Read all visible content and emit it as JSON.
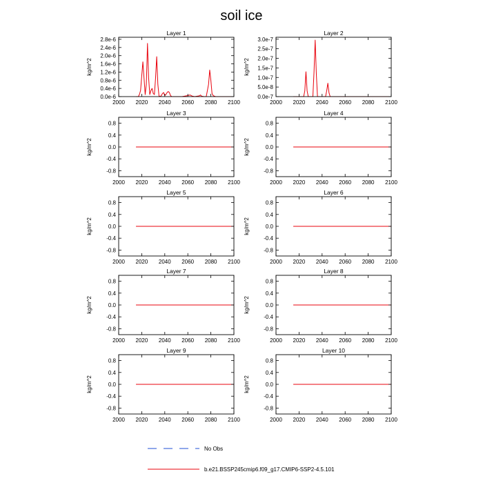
{
  "title": "soil ice",
  "colors": {
    "model": "#e8000b",
    "obs": "#1f4fd6",
    "axis": "#000000"
  },
  "chart_data": [
    {
      "type": "line",
      "panel": "Layer 1",
      "xlabel": "",
      "ylabel": "kg/m^2",
      "xlim": [
        2000,
        2100
      ],
      "ylim": [
        0,
        2.9e-06
      ],
      "xticks": [
        2000,
        2020,
        2040,
        2060,
        2080,
        2100
      ],
      "xtick_labels": [
        "2000",
        "2020",
        "2040",
        "2060",
        "2080",
        "2100"
      ],
      "yticks": [
        0,
        4e-07,
        8e-07,
        1.2e-06,
        1.6e-06,
        2e-06,
        2.4e-06,
        2.8e-06
      ],
      "ytick_labels": [
        "0.0e-6",
        "0.4e-6",
        "0.8e-6",
        "1.2e-6",
        "1.6e-6",
        "2.0e-6",
        "2.4e-6",
        "2.8e-6"
      ],
      "series": [
        {
          "name": "b.e21.BSSP245cmip6.f09_g17.CMIP6-SSP2-4.5.101",
          "x": [
            2015,
            2017,
            2018,
            2019,
            2020,
            2021,
            2022,
            2023,
            2024,
            2025,
            2026,
            2027,
            2028,
            2029,
            2030,
            2031,
            2032,
            2033,
            2034,
            2035,
            2036,
            2037,
            2038,
            2039,
            2040,
            2041,
            2042,
            2043,
            2044,
            2045,
            2046,
            2050,
            2055,
            2060,
            2062,
            2064,
            2066,
            2070,
            2071,
            2072,
            2074,
            2076,
            2078,
            2079,
            2080,
            2081,
            2082,
            2084,
            2090,
            2100
          ],
          "values": [
            0,
            0,
            1e-07,
            3e-07,
            1e-06,
            1.7e-06,
            9e-07,
            1e-07,
            6e-07,
            2.6e-06,
            9e-07,
            1e-07,
            3e-07,
            4e-07,
            1.5e-07,
            1e-07,
            9e-07,
            1.95e-06,
            6e-07,
            3e-08,
            0,
            5e-08,
            1.5e-07,
            2e-07,
            5e-08,
            1e-07,
            2e-07,
            2.5e-07,
            2e-07,
            5e-08,
            0,
            0,
            0,
            5e-08,
            8e-08,
            2e-08,
            0,
            4e-08,
            8e-08,
            2e-08,
            0,
            0,
            6e-07,
            1.3e-06,
            8e-07,
            1.5e-07,
            5e-08,
            0,
            0,
            0
          ]
        }
      ]
    },
    {
      "type": "line",
      "panel": "Layer 2",
      "xlabel": "",
      "ylabel": "kg/m^2",
      "xlim": [
        2000,
        2100
      ],
      "ylim": [
        0,
        3.1e-07
      ],
      "xticks": [
        2000,
        2020,
        2040,
        2060,
        2080,
        2100
      ],
      "xtick_labels": [
        "2000",
        "2020",
        "2040",
        "2060",
        "2080",
        "2100"
      ],
      "yticks": [
        0,
        5e-08,
        1e-07,
        1.5e-07,
        2e-07,
        2.5e-07,
        3e-07
      ],
      "ytick_labels": [
        "0.0e-7",
        "5.0e-8",
        "1.0e-7",
        "1.5e-7",
        "2.0e-7",
        "2.5e-7",
        "3.0e-7"
      ],
      "series": [
        {
          "name": "b.e21.BSSP245cmip6.f09_g17.CMIP6-SSP2-4.5.101",
          "x": [
            2015,
            2024,
            2025,
            2026,
            2027,
            2028,
            2032,
            2033,
            2034,
            2035,
            2036,
            2043,
            2044,
            2045,
            2046,
            2047,
            2100
          ],
          "values": [
            0,
            0,
            3e-08,
            1.3e-07,
            3e-08,
            0,
            0,
            1.3e-07,
            2.95e-07,
            1.2e-07,
            0,
            0,
            3e-08,
            7e-08,
            2e-08,
            0,
            0
          ]
        }
      ]
    },
    {
      "type": "line",
      "panel": "Layer 3",
      "xlabel": "",
      "ylabel": "kg/m^2",
      "xlim": [
        2000,
        2100
      ],
      "ylim": [
        -1.0,
        1.0
      ],
      "xticks": [
        2000,
        2020,
        2040,
        2060,
        2080,
        2100
      ],
      "xtick_labels": [
        "2000",
        "2020",
        "2040",
        "2060",
        "2080",
        "2100"
      ],
      "yticks": [
        -0.8,
        -0.4,
        0.0,
        0.4,
        0.8
      ],
      "ytick_labels": [
        "-0.8",
        "-0.4",
        "0.0",
        "0.4",
        "0.8"
      ],
      "series": [
        {
          "name": "b.e21.BSSP245cmip6.f09_g17.CMIP6-SSP2-4.5.101",
          "x": [
            2015,
            2100
          ],
          "values": [
            0,
            0
          ]
        }
      ]
    },
    {
      "type": "line",
      "panel": "Layer 4",
      "xlabel": "",
      "ylabel": "kg/m^2",
      "xlim": [
        2000,
        2100
      ],
      "ylim": [
        -1.0,
        1.0
      ],
      "xticks": [
        2000,
        2020,
        2040,
        2060,
        2080,
        2100
      ],
      "xtick_labels": [
        "2000",
        "2020",
        "2040",
        "2060",
        "2080",
        "2100"
      ],
      "yticks": [
        -0.8,
        -0.4,
        0.0,
        0.4,
        0.8
      ],
      "ytick_labels": [
        "-0.8",
        "-0.4",
        "0.0",
        "0.4",
        "0.8"
      ],
      "series": [
        {
          "name": "b.e21.BSSP245cmip6.f09_g17.CMIP6-SSP2-4.5.101",
          "x": [
            2015,
            2100
          ],
          "values": [
            0,
            0
          ]
        }
      ]
    },
    {
      "type": "line",
      "panel": "Layer 5",
      "xlabel": "",
      "ylabel": "kg/m^2",
      "xlim": [
        2000,
        2100
      ],
      "ylim": [
        -1.0,
        1.0
      ],
      "xticks": [
        2000,
        2020,
        2040,
        2060,
        2080,
        2100
      ],
      "xtick_labels": [
        "2000",
        "2020",
        "2040",
        "2060",
        "2080",
        "2100"
      ],
      "yticks": [
        -0.8,
        -0.4,
        0.0,
        0.4,
        0.8
      ],
      "ytick_labels": [
        "-0.8",
        "-0.4",
        "0.0",
        "0.4",
        "0.8"
      ],
      "series": [
        {
          "name": "b.e21.BSSP245cmip6.f09_g17.CMIP6-SSP2-4.5.101",
          "x": [
            2015,
            2100
          ],
          "values": [
            0,
            0
          ]
        }
      ]
    },
    {
      "type": "line",
      "panel": "Layer 6",
      "xlabel": "",
      "ylabel": "kg/m^2",
      "xlim": [
        2000,
        2100
      ],
      "ylim": [
        -1.0,
        1.0
      ],
      "xticks": [
        2000,
        2020,
        2040,
        2060,
        2080,
        2100
      ],
      "xtick_labels": [
        "2000",
        "2020",
        "2040",
        "2060",
        "2080",
        "2100"
      ],
      "yticks": [
        -0.8,
        -0.4,
        0.0,
        0.4,
        0.8
      ],
      "ytick_labels": [
        "-0.8",
        "-0.4",
        "0.0",
        "0.4",
        "0.8"
      ],
      "series": [
        {
          "name": "b.e21.BSSP245cmip6.f09_g17.CMIP6-SSP2-4.5.101",
          "x": [
            2015,
            2100
          ],
          "values": [
            0,
            0
          ]
        }
      ]
    },
    {
      "type": "line",
      "panel": "Layer 7",
      "xlabel": "",
      "ylabel": "kg/m^2",
      "xlim": [
        2000,
        2100
      ],
      "ylim": [
        -1.0,
        1.0
      ],
      "xticks": [
        2000,
        2020,
        2040,
        2060,
        2080,
        2100
      ],
      "xtick_labels": [
        "2000",
        "2020",
        "2040",
        "2060",
        "2080",
        "2100"
      ],
      "yticks": [
        -0.8,
        -0.4,
        0.0,
        0.4,
        0.8
      ],
      "ytick_labels": [
        "-0.8",
        "-0.4",
        "0.0",
        "0.4",
        "0.8"
      ],
      "series": [
        {
          "name": "b.e21.BSSP245cmip6.f09_g17.CMIP6-SSP2-4.5.101",
          "x": [
            2015,
            2100
          ],
          "values": [
            0,
            0
          ]
        }
      ]
    },
    {
      "type": "line",
      "panel": "Layer 8",
      "xlabel": "",
      "ylabel": "kg/m^2",
      "xlim": [
        2000,
        2100
      ],
      "ylim": [
        -1.0,
        1.0
      ],
      "xticks": [
        2000,
        2020,
        2040,
        2060,
        2080,
        2100
      ],
      "xtick_labels": [
        "2000",
        "2020",
        "2040",
        "2060",
        "2080",
        "2100"
      ],
      "yticks": [
        -0.8,
        -0.4,
        0.0,
        0.4,
        0.8
      ],
      "ytick_labels": [
        "-0.8",
        "-0.4",
        "0.0",
        "0.4",
        "0.8"
      ],
      "series": [
        {
          "name": "b.e21.BSSP245cmip6.f09_g17.CMIP6-SSP2-4.5.101",
          "x": [
            2015,
            2100
          ],
          "values": [
            0,
            0
          ]
        }
      ]
    },
    {
      "type": "line",
      "panel": "Layer 9",
      "xlabel": "",
      "ylabel": "kg/m^2",
      "xlim": [
        2000,
        2100
      ],
      "ylim": [
        -1.0,
        1.0
      ],
      "xticks": [
        2000,
        2020,
        2040,
        2060,
        2080,
        2100
      ],
      "xtick_labels": [
        "2000",
        "2020",
        "2040",
        "2060",
        "2080",
        "2100"
      ],
      "yticks": [
        -0.8,
        -0.4,
        0.0,
        0.4,
        0.8
      ],
      "ytick_labels": [
        "-0.8",
        "-0.4",
        "0.0",
        "0.4",
        "0.8"
      ],
      "series": [
        {
          "name": "b.e21.BSSP245cmip6.f09_g17.CMIP6-SSP2-4.5.101",
          "x": [
            2015,
            2100
          ],
          "values": [
            0,
            0
          ]
        }
      ]
    },
    {
      "type": "line",
      "panel": "Layer 10",
      "xlabel": "",
      "ylabel": "kg/m^2",
      "xlim": [
        2000,
        2100
      ],
      "ylim": [
        -1.0,
        1.0
      ],
      "xticks": [
        2000,
        2020,
        2040,
        2060,
        2080,
        2100
      ],
      "xtick_labels": [
        "2000",
        "2020",
        "2040",
        "2060",
        "2080",
        "2100"
      ],
      "yticks": [
        -0.8,
        -0.4,
        0.0,
        0.4,
        0.8
      ],
      "ytick_labels": [
        "-0.8",
        "-0.4",
        "0.0",
        "0.4",
        "0.8"
      ],
      "series": [
        {
          "name": "b.e21.BSSP245cmip6.f09_g17.CMIP6-SSP2-4.5.101",
          "x": [
            2015,
            2100
          ],
          "values": [
            0,
            0
          ]
        }
      ]
    }
  ],
  "legend": {
    "obs_label": "No Obs",
    "model_label": "b.e21.BSSP245cmip6.f09_g17.CMIP6-SSP2-4.5.101"
  }
}
